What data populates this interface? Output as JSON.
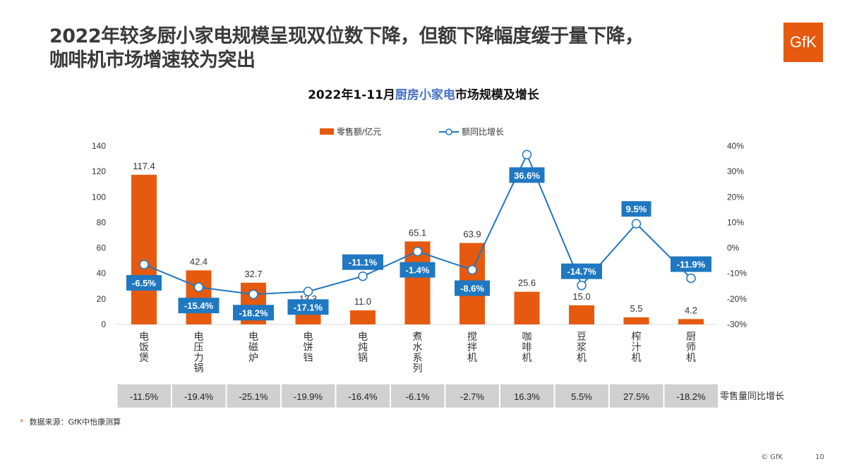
{
  "title_line1": "2022年较多厨小家电规模呈现双位数下降，但额下降幅度缓于量下降，",
  "title_line2": "咖啡机市场增速较为突出",
  "logo": "GfK",
  "source_note": "数据来源：GfK中怡康测算",
  "source_marker": "*",
  "copyright": "© GfK",
  "page_number": "10",
  "chart_data": {
    "type": "bar+line",
    "title_prefix": "2022年1-11月",
    "title_highlight": "厨房小家电",
    "title_suffix": "市场规模及增长",
    "categories": [
      "电饭煲",
      "电压力锅",
      "电磁炉",
      "电饼铛",
      "电炖锅",
      "煮水系列",
      "搅拌机",
      "咖啡机",
      "豆浆机",
      "榨汁机",
      "厨师机"
    ],
    "series": [
      {
        "name": "零售额/亿元",
        "type": "bar",
        "axis": "left",
        "color": "#e55a0f",
        "values": [
          117.4,
          42.4,
          32.7,
          13.3,
          11.0,
          65.1,
          63.9,
          25.6,
          15.0,
          5.5,
          4.2
        ],
        "labels": [
          "117.4",
          "42.4",
          "32.7",
          "13.3",
          "11.0",
          "65.1",
          "63.9",
          "25.6",
          "15.0",
          "5.5",
          "4.2"
        ]
      },
      {
        "name": "额同比增长",
        "type": "line",
        "axis": "right",
        "color": "#1f78c1",
        "values": [
          -6.5,
          -15.4,
          -18.2,
          -17.1,
          -11.1,
          -1.4,
          -8.6,
          36.6,
          -14.7,
          9.5,
          -11.9
        ],
        "labels": [
          "-6.5%",
          "-15.4%",
          "-18.2%",
          "-17.1%",
          "-11.1%",
          "-1.4%",
          "-8.6%",
          "36.6%",
          "-14.7%",
          "9.5%",
          "-11.9%"
        ]
      }
    ],
    "y_left": {
      "min": 0,
      "max": 140,
      "ticks": [
        "0",
        "20",
        "40",
        "60",
        "80",
        "100",
        "120",
        "140"
      ]
    },
    "y_right": {
      "min": -30,
      "max": 40,
      "ticks": [
        "-30%",
        "-20%",
        "-10%",
        "0%",
        "10%",
        "20%",
        "30%",
        "40%"
      ]
    },
    "legend_position": "top",
    "volume_growth": {
      "label": "零售量同比增长",
      "values": [
        "-11.5%",
        "-19.4%",
        "-25.1%",
        "-19.9%",
        "-16.4%",
        "-6.1%",
        "-2.7%",
        "16.3%",
        "5.5%",
        "27.5%",
        "-18.2%"
      ]
    }
  }
}
